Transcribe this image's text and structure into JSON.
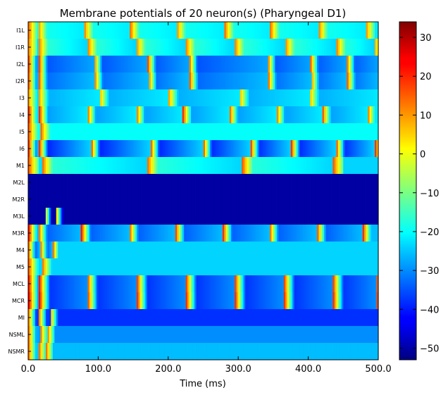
{
  "chart_data": {
    "type": "heatmap",
    "title": "Membrane potentials of 20 neuron(s) (Pharyngeal D1)",
    "xlabel": "Time (ms)",
    "ylabel": "",
    "xlim": [
      0,
      500
    ],
    "xticks": [
      0,
      100,
      200,
      300,
      400,
      500
    ],
    "xtick_labels": [
      "0.0",
      "100.0",
      "200.0",
      "300.0",
      "400.0",
      "500.0"
    ],
    "neurons": [
      "I1L",
      "I1R",
      "I2L",
      "I2R",
      "I3",
      "I4",
      "I5",
      "I6",
      "M1",
      "M2L",
      "M2R",
      "M3L",
      "M3R",
      "M4",
      "M5",
      "MCL",
      "MCR",
      "MI",
      "NSML",
      "NSMR"
    ],
    "colorbar": {
      "colormap": "jet",
      "vmin": -53,
      "vmax": 34,
      "ticks": [
        -50,
        -40,
        -30,
        -20,
        -10,
        0,
        10,
        20,
        30
      ],
      "tick_labels": [
        "−50",
        "−40",
        "−30",
        "−20",
        "−10",
        "0",
        "10",
        "20",
        "30"
      ]
    },
    "rows": [
      {
        "neuron": "I1L",
        "baseline": -22,
        "alt": -18,
        "spikes": [
          1,
          14,
          80,
          146,
          212,
          281,
          346,
          415,
          482
        ],
        "spike_peak": 14,
        "spike_width": 13
      },
      {
        "neuron": "I1R",
        "baseline": -24,
        "alt": -15,
        "spikes": [
          1,
          16,
          86,
          155,
          226,
          296,
          368,
          441,
          494
        ],
        "spike_peak": 12,
        "spike_width": 12
      },
      {
        "neuron": "I2L",
        "baseline": -28,
        "alt": -36,
        "spikes": [
          1,
          16,
          94,
          171,
          230,
          342,
          403,
          455,
          501
        ],
        "spike_peak": 18,
        "spike_width": 12
      },
      {
        "neuron": "I2R",
        "baseline": -26,
        "alt": -34,
        "spikes": [
          1,
          16,
          95,
          172,
          231,
          343,
          404,
          456,
          502
        ],
        "spike_peak": 16,
        "spike_width": 12
      },
      {
        "neuron": "I3",
        "baseline": -22,
        "alt": -28,
        "spikes": [
          1,
          16,
          102,
          201,
          302,
          402,
          501
        ],
        "spike_peak": 10,
        "spike_width": 14
      },
      {
        "neuron": "I4",
        "baseline": -22,
        "alt": -30,
        "spikes": [
          1,
          16,
          84,
          154,
          221,
          287,
          354,
          420,
          484
        ],
        "spike_peak": 20,
        "spike_width": 13
      },
      {
        "neuron": "I5",
        "baseline": -20,
        "alt": -20,
        "spikes": [
          1,
          18
        ],
        "spike_peak": 16,
        "spike_width": 14
      },
      {
        "neuron": "I6",
        "baseline": -24,
        "alt": -42,
        "spikes": [
          1,
          16,
          90,
          175,
          250,
          318,
          376,
          440,
          496
        ],
        "spike_peak": 20,
        "spike_width": 13
      },
      {
        "neuron": "M1",
        "baseline": -24,
        "alt": -16,
        "spikes": [
          1,
          20,
          170,
          306,
          436
        ],
        "spike_peak": 16,
        "spike_width": 15
      },
      {
        "neuron": "M2L",
        "baseline": -50,
        "alt": -45,
        "spikes": [],
        "spike_peak": 0,
        "spike_width": 0
      },
      {
        "neuron": "M2R",
        "baseline": -50,
        "alt": -45,
        "spikes": [],
        "spike_peak": 0,
        "spike_width": 0
      },
      {
        "neuron": "M3L",
        "baseline": -50,
        "alt": -50,
        "spikes": [
          24,
          40
        ],
        "spike_peak": 10,
        "spike_width": 10
      },
      {
        "neuron": "M3R",
        "baseline": -26,
        "alt": -36,
        "spikes": [
          1,
          14,
          76,
          144,
          210,
          278,
          344,
          412,
          478
        ],
        "spike_peak": 22,
        "spike_width": 14
      },
      {
        "neuron": "M4",
        "baseline": -24,
        "alt": -46,
        "spikes": [
          1,
          18,
          36
        ],
        "spike_peak": 14,
        "spike_width": 12
      },
      {
        "neuron": "M5",
        "baseline": -24,
        "alt": -24,
        "spikes": [
          1,
          20
        ],
        "spike_peak": 16,
        "spike_width": 14
      },
      {
        "neuron": "MCL",
        "baseline": -30,
        "alt": -40,
        "spikes": [
          1,
          16,
          84,
          155,
          225,
          295,
          365,
          435,
          497
        ],
        "spike_peak": 22,
        "spike_width": 16
      },
      {
        "neuron": "MCR",
        "baseline": -30,
        "alt": -40,
        "spikes": [
          1,
          16,
          84,
          155,
          225,
          295,
          365,
          435,
          497
        ],
        "spike_peak": 24,
        "spike_width": 16
      },
      {
        "neuron": "MI",
        "baseline": -38,
        "alt": -34,
        "spikes": [
          1,
          16,
          32
        ],
        "spike_peak": 12,
        "spike_width": 10
      },
      {
        "neuron": "NSML",
        "baseline": -30,
        "alt": -22,
        "spikes": [
          1,
          18,
          28
        ],
        "spike_peak": 14,
        "spike_width": 9
      },
      {
        "neuron": "NSMR",
        "baseline": -26,
        "alt": -20,
        "spikes": [
          1,
          16,
          26
        ],
        "spike_peak": 14,
        "spike_width": 9
      }
    ]
  }
}
